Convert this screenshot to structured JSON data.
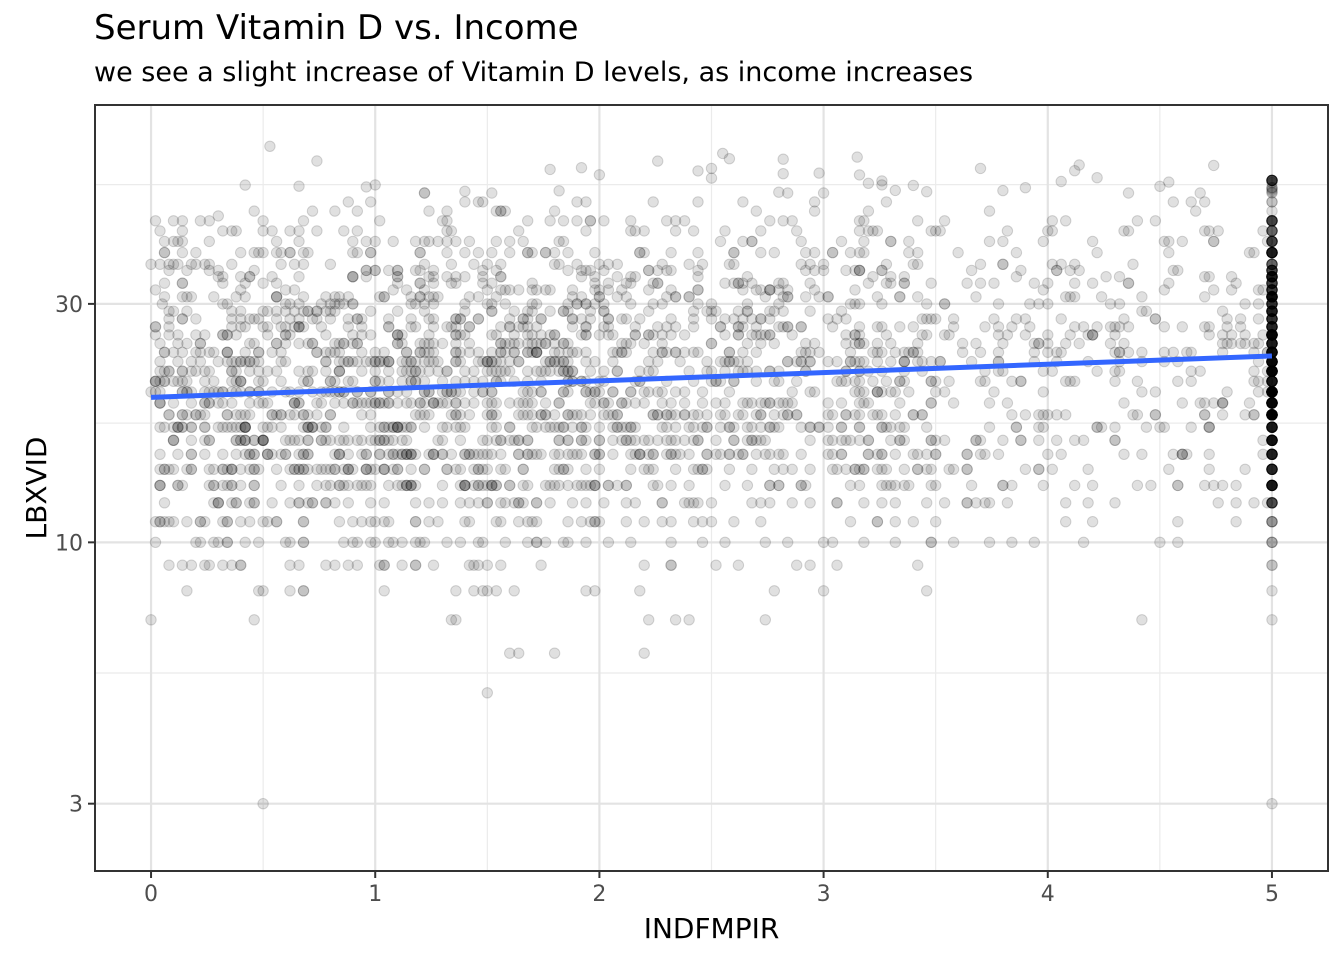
{
  "chart_data": {
    "type": "scatter",
    "title": "Serum Vitamin D vs. Income",
    "subtitle": "we see a slight increase of Vitamin D levels, as income increases",
    "xlabel": "INDFMPIR",
    "ylabel": "LBXVID",
    "xlim": [
      -0.25,
      5.25
    ],
    "ylim": [
      2.2,
      75
    ],
    "y_scale": "log10",
    "x_ticks": [
      0,
      1,
      2,
      3,
      4,
      5
    ],
    "x_tick_labels": [
      "0",
      "1",
      "2",
      "3",
      "4",
      "5"
    ],
    "y_ticks": [
      3,
      10,
      30
    ],
    "y_tick_labels": [
      "3",
      "10",
      "30"
    ],
    "grid": true,
    "legend": "none",
    "point_color": "#000000",
    "point_alpha": 0.12,
    "trend_color": "#3366ff",
    "trend_line": {
      "x": [
        0,
        5
      ],
      "y": [
        19.5,
        23.6
      ]
    },
    "points_summary": "thousands of semi-transparent points; x spans 0 to 5 with a dense column at x = 5; y values are discrete levels between about 3 and 65",
    "sample_points": [
      {
        "x": 0.0,
        "y": 20
      },
      {
        "x": 0.0,
        "y": 7
      },
      {
        "x": 0.05,
        "y": 30
      },
      {
        "x": 0.3,
        "y": 45
      },
      {
        "x": 0.53,
        "y": 62
      },
      {
        "x": 0.5,
        "y": 3
      },
      {
        "x": 1.0,
        "y": 10
      },
      {
        "x": 1.1,
        "y": 26
      },
      {
        "x": 1.5,
        "y": 5
      },
      {
        "x": 2.2,
        "y": 6
      },
      {
        "x": 2.5,
        "y": 56
      },
      {
        "x": 2.55,
        "y": 60
      },
      {
        "x": 3.0,
        "y": 50
      },
      {
        "x": 3.15,
        "y": 59
      },
      {
        "x": 3.7,
        "y": 56
      },
      {
        "x": 4.0,
        "y": 30
      },
      {
        "x": 4.5,
        "y": 10
      },
      {
        "x": 5.0,
        "y": 8
      },
      {
        "x": 5.0,
        "y": 53
      },
      {
        "x": 5.0,
        "y": 3
      }
    ]
  }
}
